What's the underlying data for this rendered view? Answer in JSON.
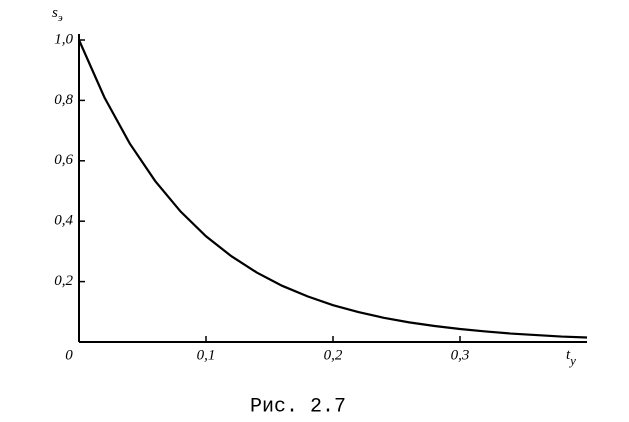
{
  "chart_data": {
    "type": "line",
    "y_label": "s",
    "y_label_sub": "э",
    "x_label": "t",
    "x_label_sub": "y",
    "caption": "Рис. 2.7",
    "x": [
      0,
      0.02,
      0.04,
      0.06,
      0.08,
      0.1,
      0.12,
      0.14,
      0.16,
      0.18,
      0.2,
      0.22,
      0.24,
      0.26,
      0.28,
      0.3,
      0.32,
      0.34,
      0.36,
      0.38,
      0.4
    ],
    "series": [
      {
        "color": "#000000",
        "values": [
          1.0,
          0.81,
          0.657,
          0.533,
          0.432,
          0.35,
          0.284,
          0.23,
          0.186,
          0.151,
          0.122,
          0.099,
          0.08,
          0.065,
          0.053,
          0.043,
          0.035,
          0.028,
          0.023,
          0.018,
          0.015
        ]
      }
    ],
    "xlim": [
      0,
      0.4
    ],
    "ylim": [
      0,
      1.0
    ],
    "xticks": [
      0,
      {
        "value": 0.1,
        "label": "0,1"
      },
      {
        "value": 0.2,
        "label": "0,2"
      },
      {
        "value": 0.3,
        "label": "0,3"
      }
    ],
    "yticks": [
      {
        "value": 0.2,
        "label": "0,2"
      },
      {
        "value": 0.4,
        "label": "0,4"
      },
      {
        "value": 0.6,
        "label": "0,6"
      },
      {
        "value": 0.8,
        "label": "0,8"
      },
      {
        "value": 1.0,
        "label": "1,0"
      }
    ]
  }
}
